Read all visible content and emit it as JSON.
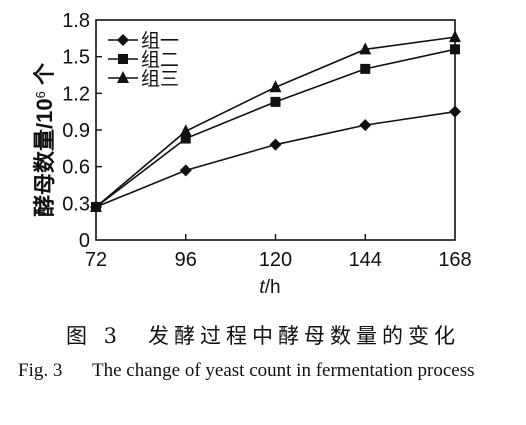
{
  "chart_data": {
    "type": "line",
    "x": [
      72,
      96,
      120,
      144,
      168
    ],
    "xlabel_italic": "t",
    "xlabel_unit": "/h",
    "ylabel_main": "酵母数量/10",
    "ylabel_sup": "6",
    "ylabel_tail": " 个",
    "ylim": [
      0,
      1.8
    ],
    "yticks": [
      "0",
      "0.3",
      "0.6",
      "0.9",
      "1.2",
      "1.5",
      "1.8"
    ],
    "xticks": [
      "72",
      "96",
      "120",
      "144",
      "168"
    ],
    "legend_position": "top-left",
    "grid": false,
    "series": [
      {
        "name": "组一",
        "marker": "diamond",
        "values": [
          0.27,
          0.57,
          0.78,
          0.94,
          1.05
        ]
      },
      {
        "name": "组二",
        "marker": "square",
        "values": [
          0.27,
          0.83,
          1.13,
          1.4,
          1.56
        ]
      },
      {
        "name": "组三",
        "marker": "triangle",
        "values": [
          0.27,
          0.89,
          1.25,
          1.56,
          1.66
        ]
      }
    ]
  },
  "caption": {
    "cn": "图 3　发酵过程中酵母数量的变化",
    "en_number": "Fig. 3",
    "en_text": "The change of yeast count in fermentation process"
  },
  "colors": {
    "ink": "#111111",
    "background": "#ffffff"
  }
}
